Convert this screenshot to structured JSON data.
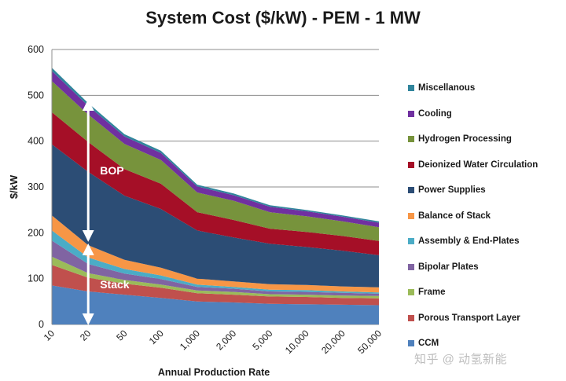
{
  "chart_data": {
    "type": "area",
    "title": "System Cost ($/kW) - PEM - 1 MW",
    "xlabel": "Annual Production Rate",
    "ylabel": "$/kW",
    "ylim": [
      0,
      600
    ],
    "yticks": [
      "0",
      "100",
      "200",
      "300",
      "400",
      "500",
      "600"
    ],
    "categories": [
      "10",
      "20",
      "50",
      "100",
      "1,000",
      "2,000",
      "5,000",
      "10,000",
      "20,000",
      "50,000"
    ],
    "grid": true,
    "legend_position": "right",
    "stacked": true,
    "series": [
      {
        "name": "CCM",
        "color": "#4f81bd",
        "values": [
          85,
          72,
          65,
          58,
          50,
          48,
          45,
          44,
          43,
          42
        ]
      },
      {
        "name": "Porous Transport Layer",
        "color": "#c0504d",
        "values": [
          45,
          30,
          24,
          22,
          18,
          17,
          16,
          16,
          15,
          15
        ]
      },
      {
        "name": "Frame",
        "color": "#9bbb59",
        "values": [
          18,
          10,
          8,
          7,
          6,
          6,
          5,
          5,
          5,
          5
        ]
      },
      {
        "name": "Bipolar Plates",
        "color": "#8064a2",
        "values": [
          35,
          20,
          14,
          12,
          8,
          7,
          6,
          6,
          6,
          5
        ]
      },
      {
        "name": "Assembly & End-Plates",
        "color": "#4bacc6",
        "values": [
          22,
          14,
          10,
          8,
          5,
          4,
          4,
          4,
          3,
          3
        ]
      },
      {
        "name": "Balance of Stack",
        "color": "#f79646",
        "values": [
          33,
          27,
          20,
          17,
          13,
          12,
          12,
          11,
          11,
          11
        ]
      },
      {
        "name": "Power Supplies",
        "color": "#2c4d75",
        "values": [
          155,
          160,
          140,
          128,
          105,
          96,
          88,
          83,
          78,
          70
        ]
      },
      {
        "name": "Deionized Water Circulation",
        "color": "#a50f27",
        "values": [
          70,
          65,
          58,
          55,
          40,
          38,
          33,
          33,
          32,
          31
        ]
      },
      {
        "name": "Hydrogen Processing",
        "color": "#77933c",
        "values": [
          68,
          60,
          55,
          52,
          43,
          42,
          36,
          34,
          32,
          30
        ]
      },
      {
        "name": "Cooling",
        "color": "#7030a0",
        "values": [
          22,
          19,
          16,
          15,
          13,
          12,
          12,
          11,
          10,
          10
        ]
      },
      {
        "name": "Miscellanous",
        "color": "#31859c",
        "values": [
          7,
          6,
          5,
          5,
          4,
          4,
          3,
          3,
          3,
          3
        ]
      }
    ],
    "annotations": [
      {
        "text": "BOP",
        "range": [
          182,
          490
        ]
      },
      {
        "text": "Stack",
        "range": [
          0,
          175
        ]
      }
    ]
  },
  "watermark": "知乎 @ 动氢新能"
}
